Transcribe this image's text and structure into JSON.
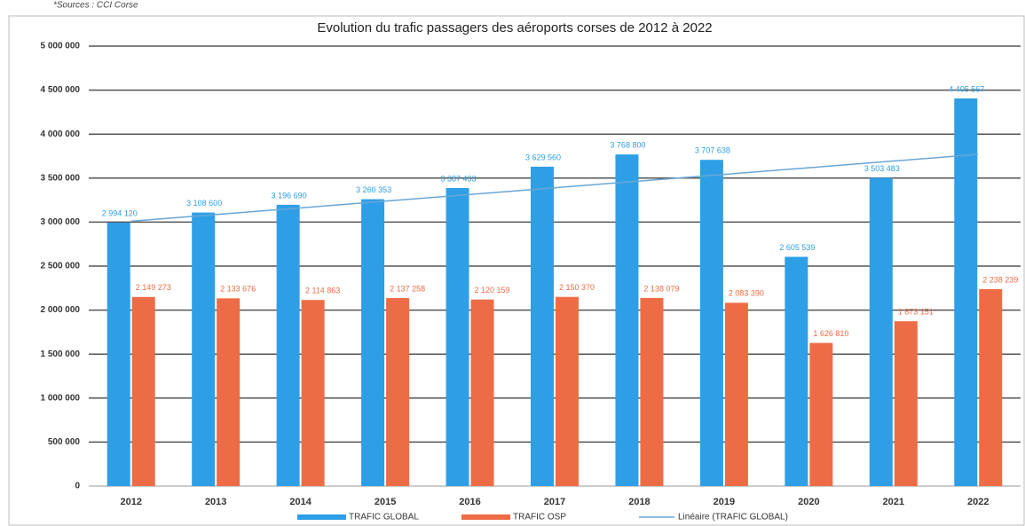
{
  "chart_data": {
    "type": "bar",
    "source": "*Sources : CCI Corse",
    "title": "Evolution du trafic passagers des aéroports corses de 2012 à 2022",
    "categories": [
      "2012",
      "2013",
      "2014",
      "2015",
      "2016",
      "2017",
      "2018",
      "2019",
      "2020",
      "2021",
      "2022"
    ],
    "series": [
      {
        "name": "TRAFIC GLOBAL",
        "color": "#2e9fe6",
        "values": [
          2994120,
          3108600,
          3196690,
          3260353,
          3387433,
          3629560,
          3768800,
          3707638,
          2605539,
          3503483,
          4405567
        ],
        "value_labels": [
          "2 994 120",
          "3 108 600",
          "3 196 690",
          "3 260 353",
          "3 387 433",
          "3 629 560",
          "3 768 800",
          "3 707 638",
          "2 605 539",
          "3 503 483",
          "4 405 567"
        ]
      },
      {
        "name": "TRAFIC OSP",
        "color": "#ee6c45",
        "values": [
          2149273,
          2133676,
          2114863,
          2137258,
          2120159,
          2150370,
          2138079,
          2083390,
          1626810,
          1873151,
          2238239
        ],
        "value_labels": [
          "2 149 273",
          "2 133 676",
          "2 114 863",
          "2 137 258",
          "2 120 159",
          "2 150 370",
          "2 138 079",
          "2 083 390",
          "1 626 810",
          "1 873 151",
          "2 238 239"
        ]
      },
      {
        "name": "Linéaire (TRAFIC GLOBAL)",
        "color": "#6aa6d6",
        "type": "line",
        "values": [
          3010000,
          3086000,
          3162000,
          3238000,
          3314000,
          3390000,
          3466000,
          3542000,
          3618000,
          3694000,
          3770000
        ]
      }
    ],
    "ylim": [
      0,
      5000000
    ],
    "yticks": [
      {
        "value": 0,
        "label": "0"
      },
      {
        "value": 500000,
        "label": "500 000"
      },
      {
        "value": 1000000,
        "label": "1 000 000"
      },
      {
        "value": 1500000,
        "label": "1 500 000"
      },
      {
        "value": 2000000,
        "label": "2 000 000"
      },
      {
        "value": 2500000,
        "label": "2 500 000"
      },
      {
        "value": 3000000,
        "label": "3 000 000"
      },
      {
        "value": 3500000,
        "label": "3 500 000"
      },
      {
        "value": 4000000,
        "label": "4 000 000"
      },
      {
        "value": 4500000,
        "label": "4 500 000"
      },
      {
        "value": 5000000,
        "label": "5 000 000"
      }
    ],
    "grid": true,
    "legend": "bottom"
  }
}
